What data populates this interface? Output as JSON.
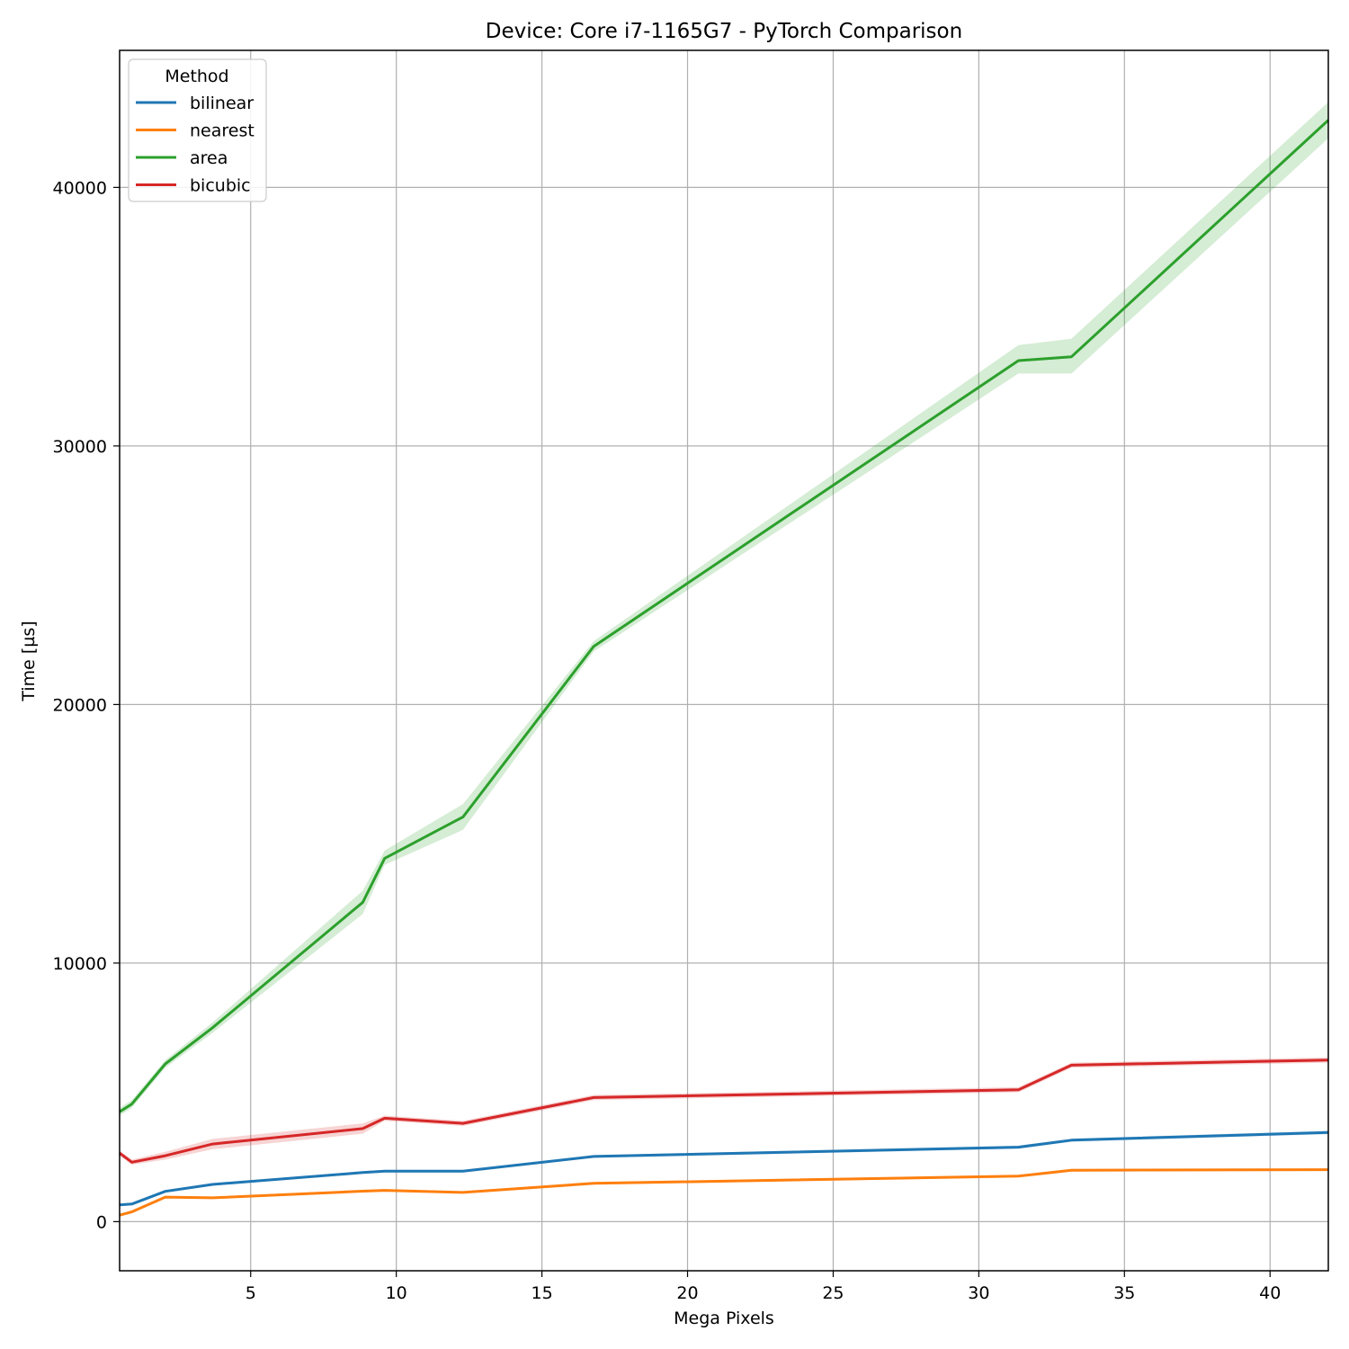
{
  "chart_data": {
    "type": "line",
    "title": "Device: Core i7-1165G7 - PyTorch Comparison",
    "xlabel": "Mega Pixels",
    "ylabel": "Time [µs]",
    "xlim": [
      0.5,
      42
    ],
    "ylim": [
      -1900,
      45300
    ],
    "xticks": [
      5,
      10,
      15,
      20,
      25,
      30,
      35,
      40
    ],
    "yticks": [
      0,
      10000,
      20000,
      30000,
      40000
    ],
    "grid": true,
    "legend": {
      "title": "Method",
      "placement": "top-left"
    },
    "x": [
      0.5,
      0.92,
      2.07,
      3.69,
      8.85,
      9.6,
      12.29,
      16.78,
      31.36,
      33.18,
      42
    ],
    "series": [
      {
        "name": "bilinear",
        "color": "#1f77b4",
        "values": [
          650,
          680,
          1170,
          1440,
          1900,
          1950,
          1950,
          2520,
          2880,
          3150,
          3450
        ],
        "band": [
          [
            600,
            700
          ],
          [
            630,
            730
          ],
          [
            1120,
            1220
          ],
          [
            1390,
            1490
          ],
          [
            1850,
            1950
          ],
          [
            1900,
            2000
          ],
          [
            1900,
            2000
          ],
          [
            2470,
            2570
          ],
          [
            2820,
            2940
          ],
          [
            3090,
            3210
          ],
          [
            3380,
            3520
          ]
        ]
      },
      {
        "name": "nearest",
        "color": "#ff7f0e",
        "values": [
          250,
          380,
          950,
          920,
          1180,
          1210,
          1130,
          1480,
          1760,
          1990,
          2010
        ],
        "band": [
          [
            210,
            290
          ],
          [
            340,
            420
          ],
          [
            900,
            1000
          ],
          [
            880,
            960
          ],
          [
            1130,
            1230
          ],
          [
            1160,
            1260
          ],
          [
            1080,
            1180
          ],
          [
            1430,
            1530
          ],
          [
            1710,
            1810
          ],
          [
            1940,
            2040
          ],
          [
            1960,
            2060
          ]
        ]
      },
      {
        "name": "area",
        "color": "#2ca02c",
        "values": [
          4250,
          4550,
          6100,
          7500,
          12350,
          14050,
          15650,
          22250,
          33300,
          33450,
          42600
        ],
        "band": [
          [
            4100,
            4400
          ],
          [
            4400,
            4700
          ],
          [
            5950,
            6250
          ],
          [
            7300,
            7700
          ],
          [
            11900,
            12800
          ],
          [
            13800,
            14350
          ],
          [
            15150,
            16150
          ],
          [
            22050,
            22450
          ],
          [
            32800,
            33900
          ],
          [
            32800,
            34150
          ],
          [
            41900,
            43300
          ]
        ]
      },
      {
        "name": "bicubic",
        "color": "#d62728",
        "values": [
          2650,
          2300,
          2550,
          3000,
          3600,
          4000,
          3800,
          4800,
          5100,
          6050,
          6250
        ],
        "band": [
          [
            2550,
            2750
          ],
          [
            2200,
            2400
          ],
          [
            2400,
            2700
          ],
          [
            2800,
            3200
          ],
          [
            3400,
            3800
          ],
          [
            3900,
            4100
          ],
          [
            3700,
            3900
          ],
          [
            4700,
            4900
          ],
          [
            5000,
            5200
          ],
          [
            5950,
            6150
          ],
          [
            6150,
            6350
          ]
        ]
      }
    ]
  }
}
